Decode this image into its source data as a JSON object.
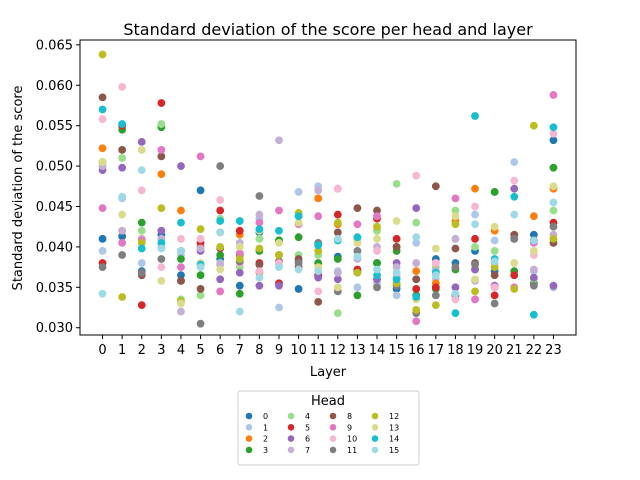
{
  "chart_data": {
    "type": "scatter",
    "title": "Standard deviation of the score per head and layer",
    "xlabel": "Layer",
    "ylabel": "Standard deviation of the score",
    "x": [
      0,
      1,
      2,
      3,
      4,
      5,
      6,
      7,
      8,
      9,
      10,
      11,
      12,
      13,
      14,
      15,
      16,
      17,
      18,
      19,
      20,
      21,
      22,
      23
    ],
    "xticks": [
      "0",
      "1",
      "2",
      "3",
      "4",
      "5",
      "6",
      "7",
      "8",
      "9",
      "10",
      "11",
      "12",
      "13",
      "14",
      "15",
      "16",
      "17",
      "18",
      "19",
      "20",
      "21",
      "22",
      "23"
    ],
    "xlim": [
      -1.15,
      24.15
    ],
    "ylim": [
      0.0291,
      0.0656
    ],
    "yticks": [
      "0.030",
      "0.035",
      "0.040",
      "0.045",
      "0.050",
      "0.055",
      "0.060",
      "0.065"
    ],
    "ytick_values": [
      0.03,
      0.035,
      0.04,
      0.045,
      0.05,
      0.055,
      0.06,
      0.065
    ],
    "grid": false,
    "legend": {
      "title": "Head",
      "placement": "below",
      "columns": 4
    },
    "series": [
      {
        "name": "0",
        "color": "#1f77b4",
        "values": [
          0.041,
          0.0413,
          0.037,
          0.0415,
          0.0365,
          0.047,
          0.0385,
          0.0352,
          0.0418,
          0.0408,
          0.0348,
          0.0365,
          0.0388,
          0.037,
          0.038,
          0.0348,
          0.036,
          0.0385,
          0.038,
          0.0395,
          0.037,
          0.041,
          0.0415,
          0.0532
        ]
      },
      {
        "name": "1",
        "color": "#aec7e8",
        "values": [
          0.0395,
          0.046,
          0.038,
          0.04,
          0.039,
          0.04,
          0.038,
          0.0375,
          0.0435,
          0.0325,
          0.0468,
          0.0475,
          0.037,
          0.035,
          0.0355,
          0.034,
          0.0405,
          0.036,
          0.041,
          0.044,
          0.0408,
          0.0505,
          0.037,
          0.035
        ]
      },
      {
        "name": "2",
        "color": "#ff7f0e",
        "values": [
          0.0522,
          0.042,
          0.041,
          0.049,
          0.0445,
          0.04,
          0.0418,
          0.0415,
          0.0368,
          0.039,
          0.0438,
          0.046,
          0.0428,
          0.041,
          0.042,
          0.04,
          0.037,
          0.0355,
          0.0432,
          0.0472,
          0.042,
          0.0415,
          0.0438,
          0.0472
        ]
      },
      {
        "name": "3",
        "color": "#2ca02c",
        "values": [
          0.0505,
          0.0545,
          0.043,
          0.0548,
          0.0385,
          0.0365,
          0.039,
          0.0342,
          0.0395,
          0.0408,
          0.0412,
          0.038,
          0.0385,
          0.034,
          0.038,
          0.0395,
          0.034,
          0.0348,
          0.0372,
          0.0372,
          0.0468,
          0.037,
          0.0355,
          0.0498
        ]
      },
      {
        "name": "4",
        "color": "#98df8a",
        "values": [
          0.05,
          0.051,
          0.042,
          0.0552,
          0.0335,
          0.034,
          0.0435,
          0.0375,
          0.041,
          0.0378,
          0.039,
          0.039,
          0.0318,
          0.041,
          0.042,
          0.0478,
          0.043,
          0.0375,
          0.0445,
          0.04,
          0.0395,
          0.0365,
          0.036,
          0.0445
        ]
      },
      {
        "name": "5",
        "color": "#d62728",
        "values": [
          0.038,
          0.055,
          0.0328,
          0.0578,
          0.0358,
          0.0405,
          0.0445,
          0.042,
          0.038,
          0.0355,
          0.0375,
          0.0365,
          0.044,
          0.0372,
          0.0435,
          0.041,
          0.0348,
          0.035,
          0.034,
          0.041,
          0.034,
          0.0365,
          0.0408,
          0.043
        ]
      },
      {
        "name": "6",
        "color": "#9467bd",
        "values": [
          0.0495,
          0.0498,
          0.053,
          0.042,
          0.05,
          0.0395,
          0.036,
          0.0368,
          0.0352,
          0.0352,
          0.0382,
          0.0362,
          0.036,
          0.0368,
          0.036,
          0.038,
          0.0448,
          0.037,
          0.035,
          0.0372,
          0.0352,
          0.0472,
          0.0362,
          0.0352
        ]
      },
      {
        "name": "7",
        "color": "#c5b0d5",
        "values": [
          0.05,
          0.042,
          0.041,
          0.041,
          0.032,
          0.0398,
          0.0378,
          0.0405,
          0.044,
          0.0532,
          0.038,
          0.047,
          0.0368,
          0.0385,
          0.04,
          0.0375,
          0.038,
          0.037,
          0.041,
          0.0358,
          0.038,
          0.0412,
          0.0372,
          0.0415
        ]
      },
      {
        "name": "8",
        "color": "#8c564b",
        "values": [
          0.0585,
          0.052,
          0.0365,
          0.0512,
          0.0358,
          0.0348,
          0.0398,
          0.039,
          0.0378,
          0.0382,
          0.0385,
          0.0332,
          0.0418,
          0.0448,
          0.0445,
          0.04,
          0.036,
          0.0475,
          0.0398,
          0.038,
          0.0365,
          0.0415,
          0.0408,
          0.0405
        ]
      },
      {
        "name": "9",
        "color": "#e377c2",
        "values": [
          0.0448,
          0.0405,
          0.0408,
          0.052,
          0.0375,
          0.0512,
          0.0345,
          0.0392,
          0.043,
          0.0445,
          0.0428,
          0.0438,
          0.0472,
          0.0428,
          0.0438,
          0.0362,
          0.0308,
          0.038,
          0.046,
          0.0335,
          0.035,
          0.035,
          0.0405,
          0.0588
        ]
      },
      {
        "name": "10",
        "color": "#f7b6d2",
        "values": [
          0.0558,
          0.0598,
          0.047,
          0.0375,
          0.041,
          0.041,
          0.0458,
          0.038,
          0.037,
          0.038,
          0.044,
          0.0345,
          0.0472,
          0.0405,
          0.0395,
          0.0365,
          0.0488,
          0.038,
          0.0335,
          0.045,
          0.035,
          0.0482,
          0.039,
          0.054
        ]
      },
      {
        "name": "11",
        "color": "#7f7f7f",
        "values": [
          0.0375,
          0.039,
          0.0368,
          0.0385,
          0.0395,
          0.0305,
          0.05,
          0.0382,
          0.0463,
          0.039,
          0.038,
          0.0405,
          0.0345,
          0.0395,
          0.035,
          0.0352,
          0.0318,
          0.034,
          0.0375,
          0.0378,
          0.033,
          0.041,
          0.0352,
          0.0425
        ]
      },
      {
        "name": "12",
        "color": "#bcbd22",
        "values": [
          0.0638,
          0.0338,
          0.0405,
          0.0448,
          0.0333,
          0.0422,
          0.04,
          0.0385,
          0.0398,
          0.039,
          0.0442,
          0.0395,
          0.043,
          0.0368,
          0.0425,
          0.0355,
          0.0322,
          0.0328,
          0.0428,
          0.0345,
          0.0375,
          0.0348,
          0.055,
          0.041
        ]
      },
      {
        "name": "13",
        "color": "#dbdb8d",
        "values": [
          0.0505,
          0.044,
          0.052,
          0.0358,
          0.033,
          0.038,
          0.0372,
          0.04,
          0.042,
          0.0405,
          0.043,
          0.0375,
          0.035,
          0.0405,
          0.041,
          0.0432,
          0.0335,
          0.0398,
          0.0438,
          0.036,
          0.0425,
          0.038,
          0.0395,
          0.0475
        ]
      },
      {
        "name": "14",
        "color": "#17becf",
        "values": [
          0.057,
          0.0552,
          0.0398,
          0.0405,
          0.043,
          0.0378,
          0.0432,
          0.0432,
          0.0422,
          0.042,
          0.0438,
          0.0402,
          0.0408,
          0.0412,
          0.0365,
          0.036,
          0.0338,
          0.0368,
          0.0318,
          0.0562,
          0.0385,
          0.0462,
          0.0316,
          0.0548
        ]
      },
      {
        "name": "15",
        "color": "#9edae5",
        "values": [
          0.0342,
          0.0462,
          0.0495,
          0.0398,
          0.0395,
          0.0375,
          0.0418,
          0.032,
          0.0362,
          0.0375,
          0.0372,
          0.037,
          0.041,
          0.0388,
          0.0372,
          0.0368,
          0.0412,
          0.0365,
          0.0342,
          0.0428,
          0.0382,
          0.044,
          0.0408,
          0.0455
        ]
      }
    ]
  }
}
